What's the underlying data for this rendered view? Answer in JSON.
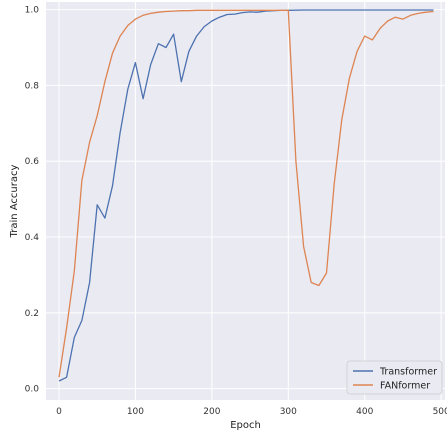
{
  "chart_data": {
    "type": "line",
    "xlabel": "Epoch",
    "ylabel": "Train Accuracy",
    "xlim": [
      -17,
      505
    ],
    "ylim": [
      -0.03,
      1.02
    ],
    "xticks": [
      0,
      100,
      200,
      300,
      400,
      500
    ],
    "yticks": [
      0.0,
      0.2,
      0.4,
      0.6,
      0.8,
      1.0
    ],
    "xtick_labels": [
      "0",
      "100",
      "200",
      "300",
      "400",
      "500"
    ],
    "ytick_labels": [
      "0.0",
      "0.2",
      "0.4",
      "0.6",
      "0.8",
      "1.0"
    ],
    "grid": true,
    "legend_position": "lower-right",
    "background": "#eaeaf2",
    "series": [
      {
        "name": "Transformer",
        "color": "#4c72b0",
        "x": [
          0,
          10,
          20,
          30,
          40,
          50,
          60,
          70,
          80,
          90,
          100,
          110,
          120,
          130,
          140,
          150,
          160,
          170,
          180,
          190,
          200,
          210,
          220,
          230,
          240,
          250,
          260,
          270,
          280,
          290,
          300,
          320,
          340,
          360,
          380,
          400,
          420,
          440,
          460,
          480,
          490
        ],
        "y": [
          0.02,
          0.03,
          0.135,
          0.18,
          0.28,
          0.485,
          0.45,
          0.535,
          0.675,
          0.79,
          0.86,
          0.765,
          0.855,
          0.91,
          0.9,
          0.935,
          0.81,
          0.89,
          0.93,
          0.955,
          0.97,
          0.98,
          0.987,
          0.988,
          0.992,
          0.994,
          0.993,
          0.996,
          0.997,
          0.998,
          0.998,
          0.999,
          0.999,
          0.999,
          0.999,
          0.999,
          0.999,
          0.999,
          0.999,
          0.999,
          0.999
        ]
      },
      {
        "name": "FANformer",
        "color": "#dd8452",
        "x": [
          0,
          10,
          20,
          30,
          40,
          50,
          60,
          70,
          80,
          90,
          100,
          110,
          120,
          130,
          140,
          150,
          160,
          170,
          180,
          190,
          200,
          220,
          240,
          260,
          280,
          300,
          310,
          320,
          330,
          340,
          350,
          360,
          370,
          380,
          390,
          400,
          410,
          420,
          430,
          440,
          450,
          460,
          470,
          480,
          490
        ],
        "y": [
          0.03,
          0.16,
          0.31,
          0.55,
          0.65,
          0.72,
          0.81,
          0.885,
          0.93,
          0.958,
          0.975,
          0.985,
          0.99,
          0.993,
          0.995,
          0.996,
          0.997,
          0.997,
          0.998,
          0.998,
          0.998,
          0.998,
          0.998,
          0.998,
          0.998,
          0.998,
          0.6,
          0.375,
          0.28,
          0.272,
          0.305,
          0.54,
          0.71,
          0.82,
          0.89,
          0.93,
          0.92,
          0.95,
          0.97,
          0.98,
          0.975,
          0.985,
          0.99,
          0.993,
          0.995
        ]
      }
    ]
  }
}
